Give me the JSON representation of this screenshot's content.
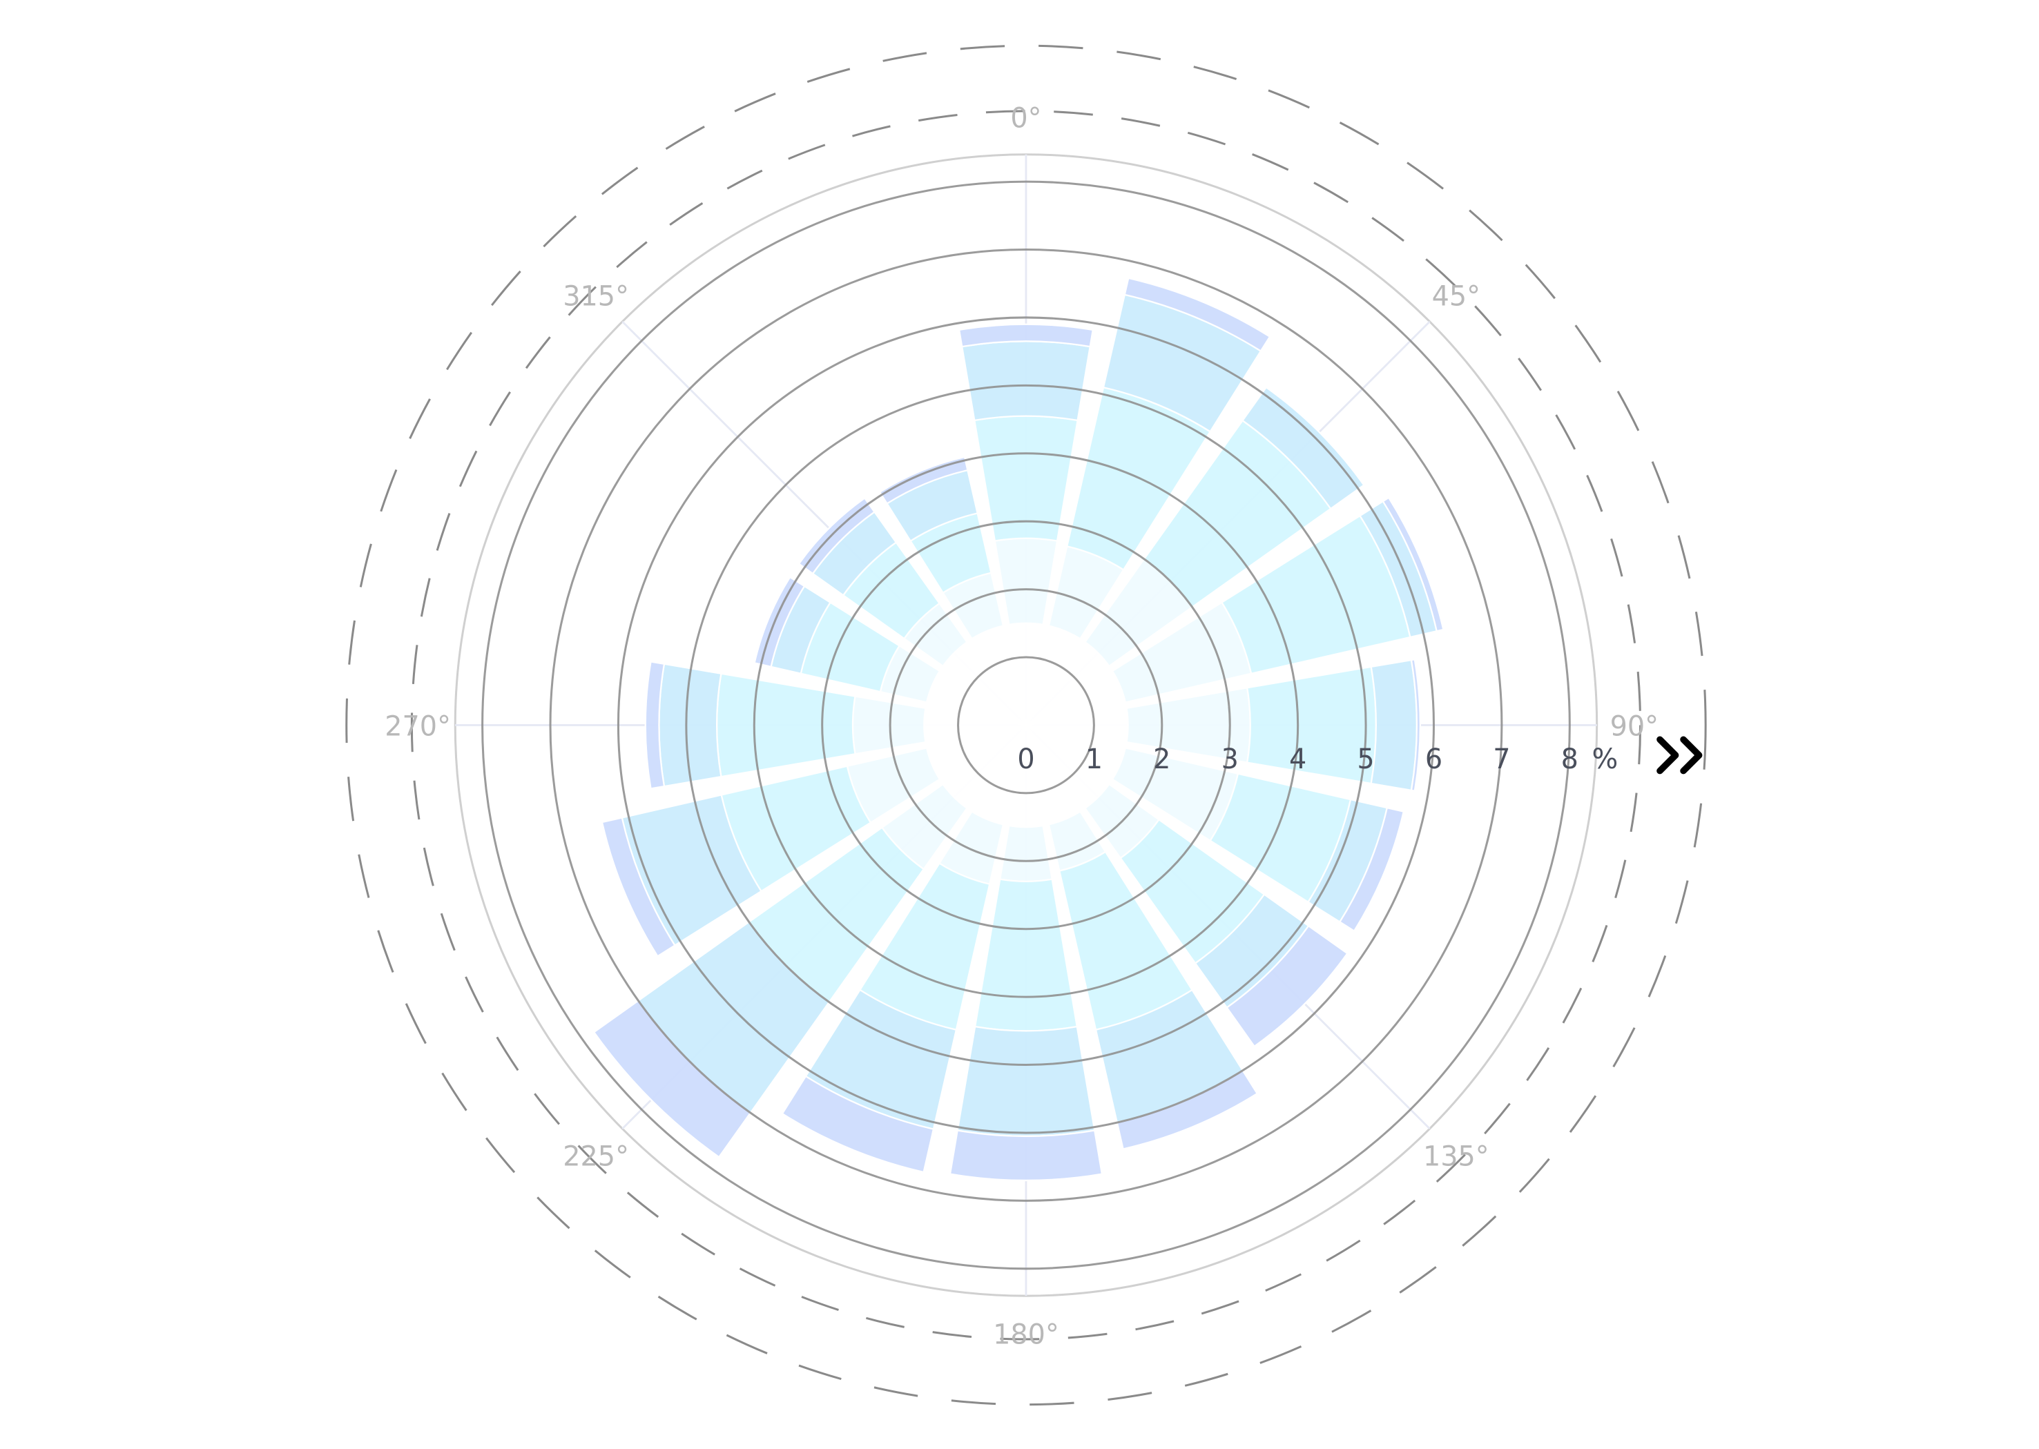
{
  "chart_data": {
    "type": "barpolar",
    "directions": [
      0,
      22.5,
      45,
      67.5,
      90,
      112.5,
      135,
      157.5,
      180,
      202.5,
      225,
      247.5,
      270,
      292.5,
      315,
      337.5
    ],
    "series": [
      {
        "color": "#ffffff",
        "values": [
          1.5,
          1.5,
          1.5,
          1.5,
          1.5,
          1.5,
          1.5,
          1.5,
          1.5,
          1.5,
          1.5,
          1.5,
          1.5,
          1.5,
          1.5,
          1.5
        ]
      },
      {
        "color": "#effbff",
        "values": [
          1.25,
          1.2,
          1.5,
          1.9,
          1.8,
          1.7,
          0.9,
          0.7,
          0.8,
          0.9,
          1.1,
          1.2,
          1.05,
          0.7,
          0.7,
          0.8
        ]
      },
      {
        "color": "#d4f7ff",
        "values": [
          1.8,
          2.4,
          2.5,
          2.4,
          1.85,
          1.7,
          1.9,
          2.4,
          2.2,
          2.2,
          2.4,
          1.9,
          2.0,
          1.2,
          1.1,
          0.9
        ]
      },
      {
        "color": "#cbecfd",
        "values": [
          1.1,
          1.4,
          0.6,
          0.4,
          0.6,
          0.55,
          0.8,
          1.4,
          1.55,
          1.5,
          2.0,
          1.5,
          0.85,
          0.45,
          0.55,
          0.65
        ]
      },
      {
        "color": "#cddcfd",
        "values": [
          0.25,
          0.25,
          0.0,
          0.1,
          0.05,
          0.25,
          0.7,
          0.4,
          0.65,
          0.65,
          0.8,
          0.3,
          0.2,
          0.25,
          0.25,
          0.2
        ]
      }
    ],
    "radial_axis": {
      "range": [
        0,
        8.4
      ],
      "tick_labels": [
        "0",
        "1",
        "2",
        "3",
        "4",
        "5",
        "6",
        "7",
        "8"
      ],
      "tick_values": [
        0,
        1,
        2,
        3,
        4,
        5,
        6,
        7,
        8
      ],
      "unit_suffix": "%",
      "angle_deg": 90,
      "grid": true
    },
    "angular_axis": {
      "direction": "clockwise",
      "rotation": "north-up",
      "tick_values": [
        0,
        45,
        90,
        135,
        180,
        225,
        270,
        315
      ],
      "tick_labels": [
        "0°",
        "45°",
        "90°",
        "135°",
        "180°",
        "225°",
        "270°",
        "315°"
      ],
      "grid": true
    },
    "legend": "none"
  },
  "controls": {
    "expand_icon": "double-chevron-right-icon"
  },
  "colors": {
    "grid_circle": "#909090",
    "outer_circle": "#d0d0d0",
    "angular_grid": "#e6e9f4",
    "dashed_ring": "#8a8a8a",
    "tick_text": "#4a4f5c",
    "angular_tick_text": "#b8b8b8"
  }
}
